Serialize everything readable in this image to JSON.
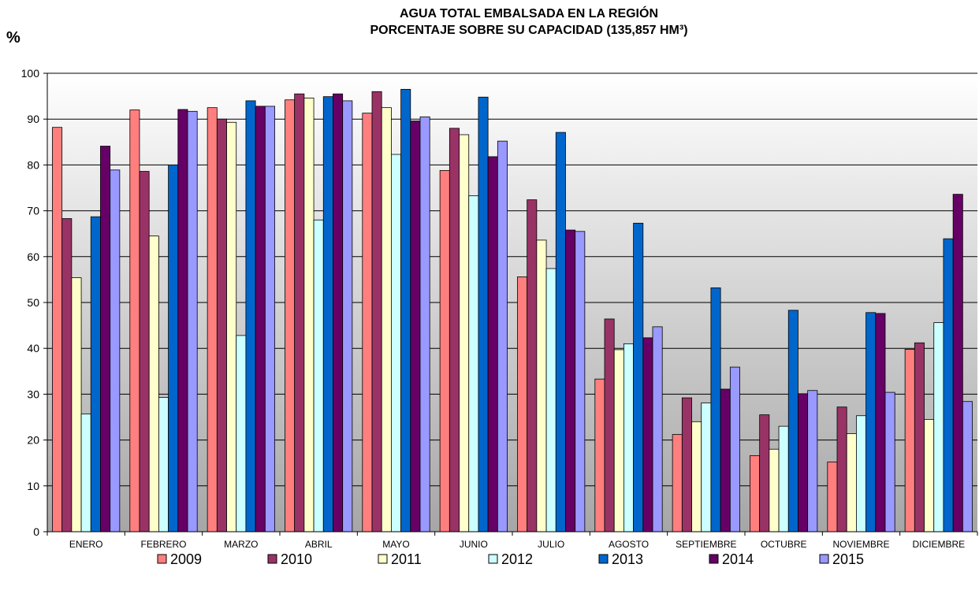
{
  "chart_data": {
    "type": "bar",
    "title": "AGUA TOTAL EMBALSADA EN LA REGIÓN",
    "subtitle": "PORCENTAJE SOBRE SU CAPACIDAD (135,857 HM³)",
    "ylabel": "%",
    "xlabel": "",
    "ylim": [
      0,
      100
    ],
    "yticks": [
      0,
      10,
      20,
      30,
      40,
      50,
      60,
      70,
      80,
      90,
      100
    ],
    "grid": true,
    "legend_position": "bottom",
    "categories": [
      "ENERO",
      "FEBRERO",
      "MARZO",
      "ABRIL",
      "MAYO",
      "JUNIO",
      "JULIO",
      "AGOSTO",
      "SEPTIEMBRE",
      "OCTUBRE",
      "NOVIEMBRE",
      "DICIEMBRE"
    ],
    "series": [
      {
        "name": "2009",
        "color": "#FF7F7F",
        "values": [
          88.2,
          92.0,
          92.5,
          94.2,
          91.3,
          78.8,
          55.6,
          33.3,
          21.2,
          16.6,
          15.2,
          39.8
        ]
      },
      {
        "name": "2010",
        "color": "#993366",
        "values": [
          68.3,
          78.6,
          90.0,
          95.5,
          96.0,
          88.0,
          72.4,
          46.4,
          29.2,
          25.5,
          27.2,
          41.2
        ]
      },
      {
        "name": "2011",
        "color": "#FFFFCC",
        "values": [
          55.4,
          64.5,
          89.3,
          94.6,
          92.5,
          86.6,
          63.6,
          39.7,
          24.0,
          18.0,
          21.4,
          24.5
        ]
      },
      {
        "name": "2012",
        "color": "#CCFFFF",
        "values": [
          25.7,
          29.3,
          42.8,
          68.0,
          82.3,
          73.3,
          57.4,
          41.0,
          28.1,
          23.0,
          25.3,
          45.6
        ]
      },
      {
        "name": "2013",
        "color": "#0066CC",
        "values": [
          68.7,
          80.0,
          94.0,
          94.9,
          96.5,
          94.8,
          87.1,
          67.3,
          53.2,
          48.3,
          47.8,
          63.9
        ]
      },
      {
        "name": "2014",
        "color": "#660066",
        "values": [
          84.1,
          92.1,
          92.8,
          95.5,
          89.6,
          81.8,
          65.8,
          42.3,
          31.1,
          30.1,
          47.6,
          73.6
        ]
      },
      {
        "name": "2015",
        "color": "#9999FF",
        "values": [
          78.9,
          91.7,
          92.8,
          94.0,
          90.5,
          85.2,
          65.5,
          44.7,
          35.9,
          30.8,
          30.4,
          28.4
        ]
      }
    ]
  }
}
